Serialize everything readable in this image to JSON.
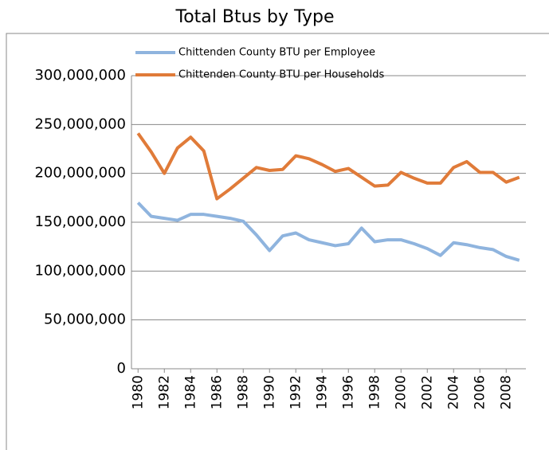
{
  "chart_data": {
    "type": "line",
    "title": "Total Btus by Type",
    "x": [
      1980,
      1981,
      1982,
      1983,
      1984,
      1985,
      1986,
      1987,
      1988,
      1989,
      1990,
      1991,
      1992,
      1993,
      1994,
      1995,
      1996,
      1997,
      1998,
      1999,
      2000,
      2001,
      2002,
      2003,
      2004,
      2005,
      2006,
      2007,
      2008,
      2009
    ],
    "xlim": [
      1979.5,
      2009.5
    ],
    "xticks": [
      1980,
      1982,
      1984,
      1986,
      1988,
      1990,
      1992,
      1994,
      1996,
      1998,
      2000,
      2002,
      2004,
      2006,
      2008
    ],
    "ylim": [
      0,
      300000000
    ],
    "yticks": [
      0,
      {
        "value": 50000000,
        "label": "50,000,000"
      },
      {
        "value": 100000000,
        "label": "100,000,000"
      },
      {
        "value": 150000000,
        "label": "150,000,000"
      },
      {
        "value": 200000000,
        "label": "200,000,000"
      },
      {
        "value": 250000000,
        "label": "250,000,000"
      },
      {
        "value": 300000000,
        "label": "300,000,000"
      }
    ],
    "grid": true,
    "series": [
      {
        "name": "Chittenden County BTU per Employee",
        "color": "#8fb4de",
        "values": [
          170000000,
          156000000,
          154000000,
          152000000,
          158000000,
          158000000,
          156000000,
          154000000,
          151000000,
          137000000,
          121000000,
          136000000,
          139000000,
          132000000,
          129000000,
          126000000,
          128000000,
          144000000,
          130000000,
          132000000,
          132000000,
          128000000,
          123000000,
          116000000,
          129000000,
          127000000,
          124000000,
          122000000,
          115000000,
          111000000
        ]
      },
      {
        "name": "Chittenden County BTU per Households",
        "color": "#e07b39",
        "values": [
          241000000,
          222000000,
          200000000,
          226000000,
          237000000,
          223000000,
          174000000,
          184000000,
          195000000,
          206000000,
          203000000,
          204000000,
          218000000,
          215000000,
          209000000,
          202000000,
          205000000,
          196000000,
          187000000,
          188000000,
          201000000,
          195000000,
          190000000,
          190000000,
          206000000,
          212000000,
          201000000,
          201000000,
          191000000,
          196000000
        ]
      }
    ]
  }
}
